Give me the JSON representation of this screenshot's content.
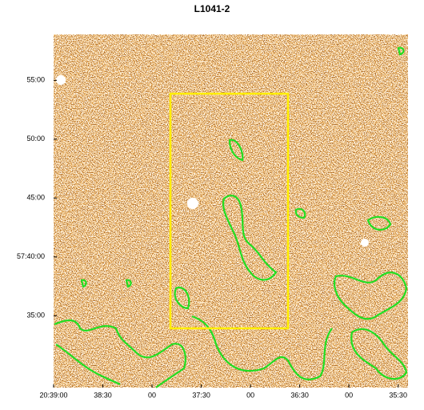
{
  "chart_data": {
    "type": "image",
    "title": "L1041-2",
    "xlim": [
      74340,
      74124
    ],
    "xticks": [
      {
        "value": 74340,
        "label": "20:39:00"
      },
      {
        "value": 74310,
        "label": "38:30"
      },
      {
        "value": 74280,
        "label": "00"
      },
      {
        "value": 74250,
        "label": "37:30"
      },
      {
        "value": 74220,
        "label": "00"
      },
      {
        "value": 74190,
        "label": "36:30"
      },
      {
        "value": 74160,
        "label": "00"
      },
      {
        "value": 74130,
        "label": "35:30"
      }
    ],
    "ylim": [
      3448.9,
      3478.9
    ],
    "yticks": [
      {
        "value": 3475,
        "label": "55:00"
      },
      {
        "value": 3470,
        "label": "50:00"
      },
      {
        "value": 3465,
        "label": "45:00"
      },
      {
        "value": 3460,
        "label": "57:40:00"
      },
      {
        "value": 3455,
        "label": "35:00"
      }
    ]
  }
}
